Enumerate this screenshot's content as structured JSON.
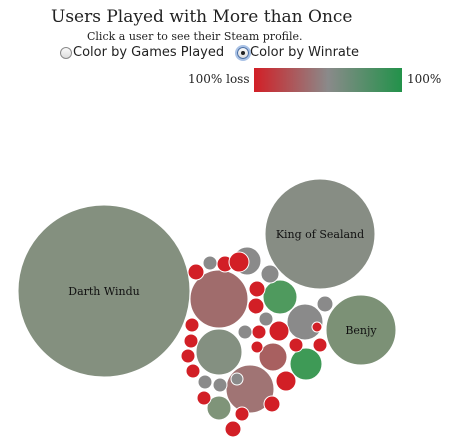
{
  "header": {
    "title": "Users Played with More than Once",
    "subtitle": "Click a user to see their Steam profile."
  },
  "controls": {
    "options": [
      {
        "label": "Color by Games Played",
        "selected": false
      },
      {
        "label": "Color by Winrate",
        "selected": true
      }
    ]
  },
  "legend": {
    "left_label": "100% loss",
    "right_label": "100%",
    "colors": {
      "loss": "#d21f26",
      "neutral": "#8a8a8a",
      "win": "#22924a"
    }
  },
  "bubbles": [
    {
      "label": "Darth Windu",
      "color": "#84907f"
    },
    {
      "label": "King of Sealand",
      "color": "#878d84"
    },
    {
      "label": "Benjy",
      "color": "#7c9176"
    },
    {
      "label": "",
      "color": "#a06c6c"
    },
    {
      "label": "",
      "color": "#a07474"
    },
    {
      "label": "",
      "color": "#849081"
    },
    {
      "label": "",
      "color": "#4f9a5e"
    },
    {
      "label": "",
      "color": "#8a8a8a"
    },
    {
      "label": "",
      "color": "#a86060"
    },
    {
      "label": "",
      "color": "#3e9a56"
    },
    {
      "label": "",
      "color": "#7f9479"
    },
    {
      "label": "",
      "color": "#8a8a8a"
    },
    {
      "label": "",
      "color": "#d21f26"
    },
    {
      "label": "",
      "color": "#8a8a8a"
    },
    {
      "label": "",
      "color": "#d21f26"
    },
    {
      "label": "",
      "color": "#d21f26"
    },
    {
      "label": "",
      "color": "#8a8a8a"
    },
    {
      "label": "",
      "color": "#d21f26"
    },
    {
      "label": "",
      "color": "#d21f26"
    },
    {
      "label": "",
      "color": "#8a8a8a"
    },
    {
      "label": "",
      "color": "#d21f26"
    },
    {
      "label": "",
      "color": "#d21f26"
    },
    {
      "label": "",
      "color": "#8a8a8a"
    },
    {
      "label": "",
      "color": "#d21f26"
    },
    {
      "label": "",
      "color": "#d21f26"
    },
    {
      "label": "",
      "color": "#d21f26"
    },
    {
      "label": "",
      "color": "#d21f26"
    },
    {
      "label": "",
      "color": "#8a8a8a"
    },
    {
      "label": "",
      "color": "#d21f26"
    },
    {
      "label": "",
      "color": "#d21f26"
    },
    {
      "label": "",
      "color": "#d21f26"
    },
    {
      "label": "",
      "color": "#d21f26"
    },
    {
      "label": "",
      "color": "#8a8a8a"
    },
    {
      "label": "",
      "color": "#8a8a8a"
    },
    {
      "label": "",
      "color": "#d21f26"
    },
    {
      "label": "",
      "color": "#d21f26"
    },
    {
      "label": "",
      "color": "#d21f26"
    },
    {
      "label": "",
      "color": "#d21f26"
    },
    {
      "label": "",
      "color": "#d21f26"
    },
    {
      "label": "",
      "color": "#8a8a8a"
    }
  ]
}
